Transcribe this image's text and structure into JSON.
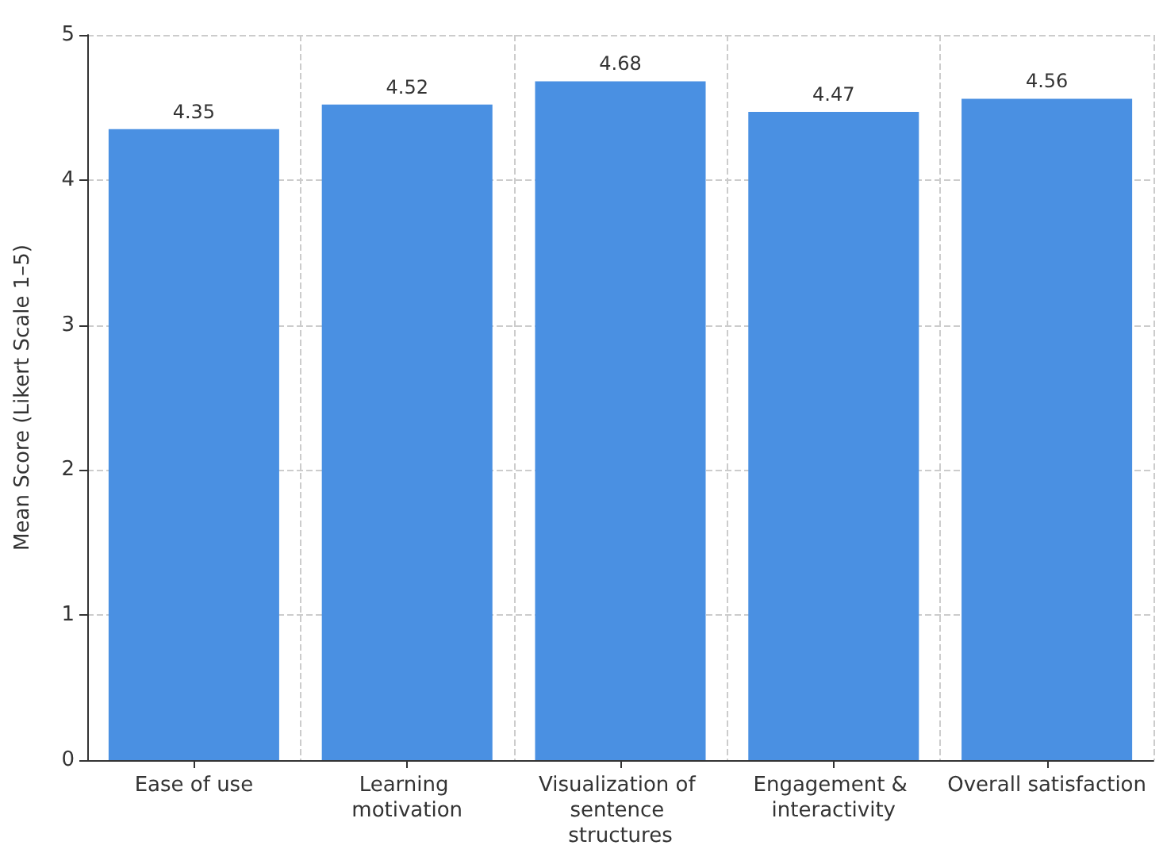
{
  "chart_data": {
    "type": "bar",
    "ylabel": "Mean Score (Likert Scale 1–5)",
    "categories": [
      "Ease of use",
      "Learning motivation",
      "Visualization of sentence structures",
      "Engagement & interactivity",
      "Overall satisfaction"
    ],
    "values": [
      4.35,
      4.52,
      4.68,
      4.47,
      4.56
    ],
    "color": "#4a90e2",
    "ylim": [
      0,
      5
    ],
    "yticks": [
      0,
      1,
      2,
      3,
      4,
      5
    ],
    "grid": true,
    "data_labels": true
  }
}
